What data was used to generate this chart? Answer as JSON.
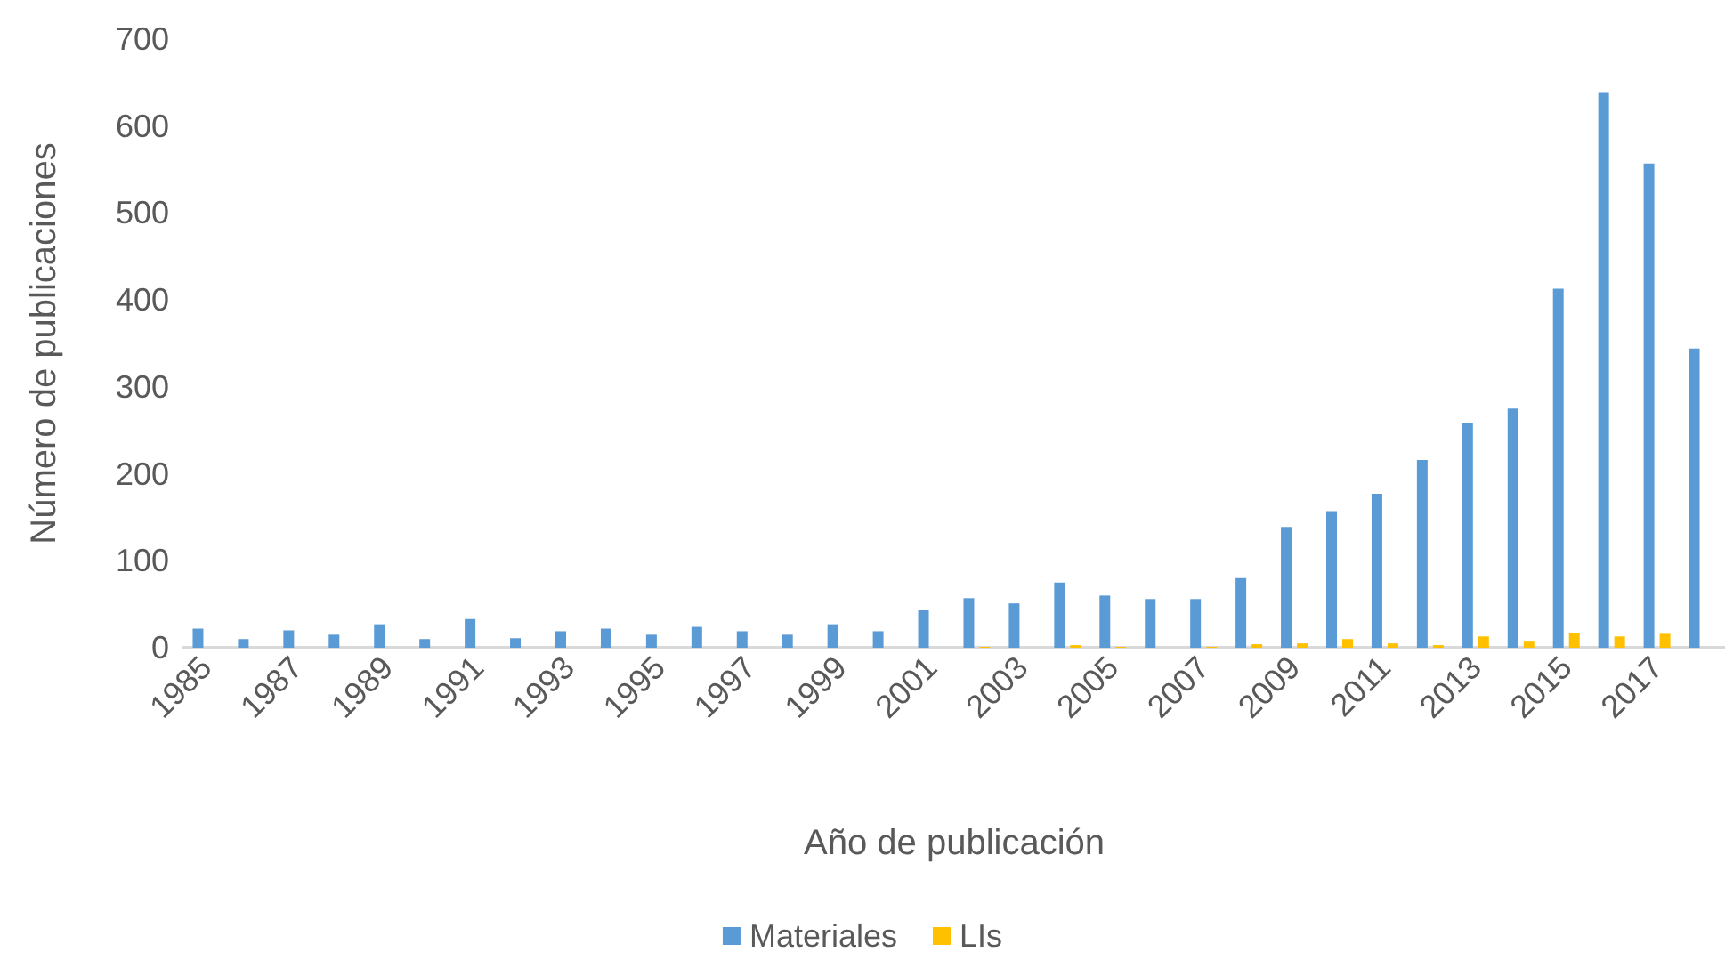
{
  "chart_data": {
    "type": "bar",
    "xlabel": "Año de publicación",
    "ylabel": "Número de publicaciones",
    "categories": [
      "1985",
      null,
      "1987",
      null,
      "1989",
      null,
      "1991",
      null,
      "1993",
      null,
      "1995",
      null,
      "1997",
      null,
      "1999",
      null,
      "2001",
      null,
      "2003",
      null,
      "2005",
      null,
      "2007",
      null,
      "2009",
      null,
      "2011",
      null,
      "2013",
      null,
      "2015",
      null,
      "2017",
      null
    ],
    "series": [
      {
        "name": "Materiales",
        "color": "#5b9bd5",
        "values": [
          22,
          10,
          20,
          15,
          27,
          10,
          33,
          11,
          19,
          22,
          15,
          24,
          19,
          15,
          27,
          19,
          43,
          57,
          51,
          75,
          60,
          56,
          56,
          80,
          139,
          157,
          177,
          216,
          259,
          275,
          413,
          639,
          557,
          344
        ]
      },
      {
        "name": "LIs",
        "color": "#ffc000",
        "values": [
          0,
          0,
          0,
          0,
          0,
          0,
          0,
          0,
          0,
          0,
          0,
          0,
          0,
          0,
          0,
          0,
          0,
          1,
          0,
          3,
          1,
          0,
          1,
          4,
          5,
          10,
          5,
          3,
          13,
          7,
          17,
          13,
          16,
          null
        ]
      }
    ],
    "ylim": [
      0,
      700
    ],
    "yticks": [
      0,
      100,
      200,
      300,
      400,
      500,
      600,
      700
    ],
    "grid": false,
    "legend": "bottom"
  }
}
